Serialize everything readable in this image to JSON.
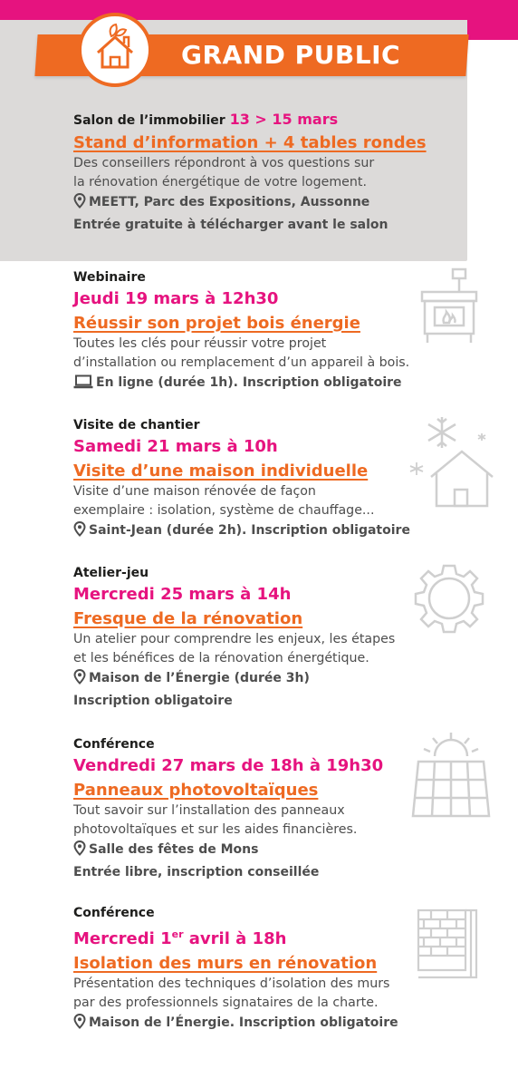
{
  "header": {
    "banner_title": "GRAND PUBLIC",
    "icon": "house-leaf-icon"
  },
  "colors": {
    "pink": "#e6137f",
    "orange": "#ee6a22",
    "grey_box": "#dcdad9",
    "text_grey": "#4d4d4d"
  },
  "events": [
    {
      "category": "Salon de l’immobilier",
      "category_date": "13 > 15 mars",
      "title": "Stand d’information + 4 tables rondes",
      "desc1": "Des conseillers répondront à vos questions sur",
      "desc2": "la rénovation énergétique de votre logement.",
      "info1": "MEETT, Parc des Expositions, Aussonne",
      "info2": "Entrée gratuite à télécharger avant le salon",
      "info_icon": "location-pin-icon"
    },
    {
      "category": "Webinaire",
      "date": "Jeudi 19 mars à 12h30",
      "title": "Réussir son projet bois énergie",
      "desc1": "Toutes les clés pour réussir votre projet",
      "desc2": "d’installation ou remplacement d’un appareil à bois.",
      "info1": "En ligne (durée 1h). Inscription obligatoire",
      "info_icon": "laptop-icon",
      "deco_icon": "wood-stove-icon"
    },
    {
      "category": "Visite de chantier",
      "date": "Samedi 21 mars à 10h",
      "title": "Visite d’une maison individuelle",
      "desc1": "Visite d’une maison rénovée de façon",
      "desc2": "exemplaire : isolation, système de chauffage...",
      "info1": "Saint-Jean (durée 2h). Inscription obligatoire",
      "info_icon": "location-pin-icon",
      "deco_icon": "house-snowflake-icon"
    },
    {
      "category": "Atelier-jeu",
      "date": "Mercredi 25 mars à 14h",
      "title": "Fresque de la rénovation",
      "desc1": "Un atelier pour comprendre les enjeux, les étapes",
      "desc2": "et les bénéfices de la rénovation énergétique.",
      "info1": "Maison de l’Énergie (durée 3h)",
      "info2": "Inscription obligatoire",
      "info_icon": "location-pin-icon",
      "deco_icon": "gear-icon"
    },
    {
      "category": "Conférence",
      "date": "Vendredi 27 mars de 18h à 19h30",
      "title": "Panneaux photovoltaïques",
      "desc1": "Tout savoir sur l’installation des panneaux",
      "desc2": "photovoltaïques et sur les aides financières.",
      "info1": "Salle des fêtes de Mons",
      "info2": "Entrée libre, inscription conseillée",
      "info_icon": "location-pin-icon",
      "deco_icon": "solar-panel-icon"
    },
    {
      "category": "Conférence",
      "date_main": "Mercredi 1",
      "date_sup": "er",
      "date_end": " avril à 18h",
      "title": "Isolation des murs en rénovation",
      "desc1": "Présentation des techniques d’isolation des murs",
      "desc2": "par des professionnels signataires de la charte.",
      "info1": "Maison de l’Énergie. Inscription obligatoire",
      "info_icon": "location-pin-icon",
      "deco_icon": "brick-wall-icon"
    }
  ]
}
